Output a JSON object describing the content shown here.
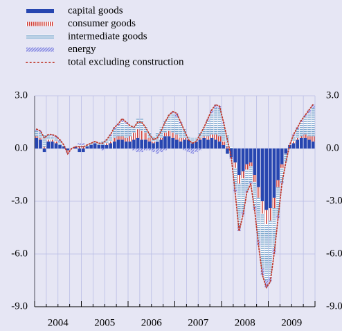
{
  "chart_data": {
    "type": "bar",
    "stacked": true,
    "categories": [
      null,
      null,
      null,
      null,
      null,
      null,
      "2004",
      null,
      null,
      null,
      null,
      null,
      null,
      null,
      null,
      null,
      null,
      null,
      "2005",
      null,
      null,
      null,
      null,
      null,
      null,
      null,
      null,
      null,
      null,
      null,
      "2006",
      null,
      null,
      null,
      null,
      null,
      null,
      null,
      null,
      null,
      null,
      null,
      "2007",
      null,
      null,
      null,
      null,
      null,
      null,
      null,
      null,
      null,
      null,
      null,
      "2008",
      null,
      null,
      null,
      null,
      null,
      null,
      null,
      null,
      null,
      null,
      null,
      "2009",
      null,
      null,
      null,
      null,
      null
    ],
    "series": [
      {
        "name": "capital goods",
        "kind": "bar",
        "pattern": "solid",
        "color": "#2746b0",
        "values": [
          0.6,
          0.5,
          -0.2,
          0.4,
          0.4,
          0.3,
          0.2,
          0.1,
          -0.1,
          0.0,
          0.1,
          -0.2,
          -0.2,
          0.1,
          0.2,
          0.3,
          0.2,
          0.2,
          0.2,
          0.3,
          0.4,
          0.5,
          0.5,
          0.4,
          0.4,
          0.5,
          0.6,
          0.5,
          0.5,
          0.4,
          0.3,
          0.4,
          0.5,
          0.7,
          0.7,
          0.6,
          0.5,
          0.4,
          0.5,
          0.5,
          0.3,
          0.4,
          0.5,
          0.6,
          0.5,
          0.6,
          0.5,
          0.4,
          0.2,
          -0.3,
          -0.5,
          -0.8,
          -1.5,
          -1.3,
          -0.9,
          -0.8,
          -1.5,
          -2.2,
          -3.0,
          -3.5,
          -3.4,
          -2.8,
          -1.8,
          -0.9,
          -0.3,
          0.2,
          0.3,
          0.5,
          0.6,
          0.6,
          0.5,
          0.4
        ]
      },
      {
        "name": "consumer goods",
        "kind": "bar",
        "pattern": "vertical",
        "color": "#d0403a",
        "values": [
          0.1,
          0.1,
          0.1,
          0.1,
          0.1,
          0.1,
          0.0,
          0.0,
          -0.1,
          0.0,
          0.0,
          0.1,
          0.1,
          0.0,
          0.0,
          0.0,
          0.0,
          0.0,
          0.1,
          0.1,
          0.2,
          0.2,
          0.2,
          0.2,
          0.3,
          0.4,
          0.5,
          0.5,
          0.4,
          0.2,
          0.1,
          0.0,
          0.1,
          0.2,
          0.3,
          0.3,
          0.3,
          0.2,
          0.1,
          0.0,
          0.0,
          0.0,
          0.1,
          0.1,
          0.2,
          0.2,
          0.3,
          0.3,
          0.2,
          0.1,
          0.0,
          -0.3,
          -0.5,
          -0.4,
          -0.3,
          -0.2,
          -0.4,
          -0.6,
          -0.7,
          -0.8,
          -0.7,
          -0.6,
          -0.4,
          -0.2,
          0.0,
          0.0,
          0.1,
          0.1,
          0.1,
          0.2,
          0.2,
          0.3
        ]
      },
      {
        "name": "intermediate goods",
        "kind": "bar",
        "pattern": "horizontal",
        "color": "#7fa9cf",
        "values": [
          0.3,
          0.3,
          0.7,
          0.3,
          0.2,
          0.2,
          0.2,
          0.1,
          0.0,
          0.0,
          0.0,
          0.1,
          0.1,
          0.1,
          0.1,
          0.1,
          0.1,
          0.2,
          0.2,
          0.3,
          0.5,
          0.6,
          0.8,
          0.8,
          0.6,
          0.4,
          0.6,
          0.7,
          0.4,
          0.3,
          0.3,
          0.5,
          0.6,
          0.7,
          0.9,
          1.1,
          1.0,
          0.8,
          0.5,
          0.2,
          0.3,
          0.2,
          0.3,
          0.5,
          0.9,
          1.2,
          1.5,
          1.6,
          1.0,
          0.7,
          0.1,
          -1.2,
          -2.4,
          -1.9,
          -1.2,
          -0.9,
          -1.4,
          -2.4,
          -3.1,
          -3.2,
          -3.2,
          -2.3,
          -1.6,
          -0.8,
          -0.5,
          0.0,
          0.3,
          0.5,
          0.8,
          1.0,
          1.3,
          1.6
        ]
      },
      {
        "name": "energy",
        "kind": "bar",
        "pattern": "diagonal",
        "color": "#7d7fdc",
        "values": [
          0.1,
          0.1,
          0.0,
          0.0,
          0.1,
          0.1,
          0.1,
          0.0,
          -0.1,
          0.0,
          0.0,
          0.1,
          0.1,
          0.0,
          0.0,
          0.0,
          0.0,
          -0.1,
          0.0,
          0.1,
          0.1,
          0.1,
          0.2,
          0.1,
          0.0,
          -0.1,
          -0.2,
          -0.2,
          -0.1,
          -0.1,
          -0.2,
          -0.3,
          -0.2,
          -0.1,
          0.0,
          0.1,
          0.2,
          0.1,
          -0.1,
          -0.2,
          -0.3,
          -0.2,
          -0.1,
          0.0,
          0.1,
          0.2,
          0.2,
          0.1,
          0.1,
          0.0,
          -0.1,
          -0.2,
          -0.3,
          -0.2,
          -0.1,
          -0.1,
          -0.2,
          -0.3,
          -0.4,
          -0.4,
          -0.3,
          -0.3,
          -0.2,
          -0.1,
          0.0,
          0.0,
          0.1,
          0.1,
          0.1,
          0.1,
          0.2,
          0.2
        ]
      },
      {
        "name": "total excluding construction",
        "kind": "line",
        "pattern": "dotted",
        "color": "#c0392b",
        "values": [
          1.1,
          1.0,
          0.6,
          0.8,
          0.8,
          0.7,
          0.5,
          0.2,
          -0.3,
          0.0,
          0.1,
          0.1,
          0.1,
          0.2,
          0.3,
          0.4,
          0.3,
          0.3,
          0.5,
          0.8,
          1.2,
          1.4,
          1.7,
          1.5,
          1.3,
          1.2,
          1.5,
          1.5,
          1.2,
          0.8,
          0.5,
          0.6,
          1.0,
          1.5,
          1.9,
          2.1,
          2.0,
          1.5,
          1.0,
          0.5,
          0.3,
          0.4,
          0.8,
          1.2,
          1.7,
          2.2,
          2.5,
          2.4,
          1.5,
          0.5,
          -0.5,
          -2.5,
          -4.7,
          -3.8,
          -2.5,
          -2.0,
          -3.5,
          -5.5,
          -7.2,
          -7.9,
          -7.6,
          -6.0,
          -4.0,
          -2.0,
          -0.8,
          0.2,
          0.8,
          1.2,
          1.6,
          1.9,
          2.2,
          2.5
        ]
      }
    ],
    "ylim": [
      -9,
      3
    ],
    "yticks": [
      {
        "value": 3,
        "label": "3.0"
      },
      {
        "value": 0,
        "label": "0.0"
      },
      {
        "value": -3,
        "label": "-3.0"
      },
      {
        "value": -6,
        "label": "-6.0"
      },
      {
        "value": -9,
        "label": "-9.0"
      }
    ],
    "grid": true,
    "legend": "top-left",
    "right_axis": true
  }
}
